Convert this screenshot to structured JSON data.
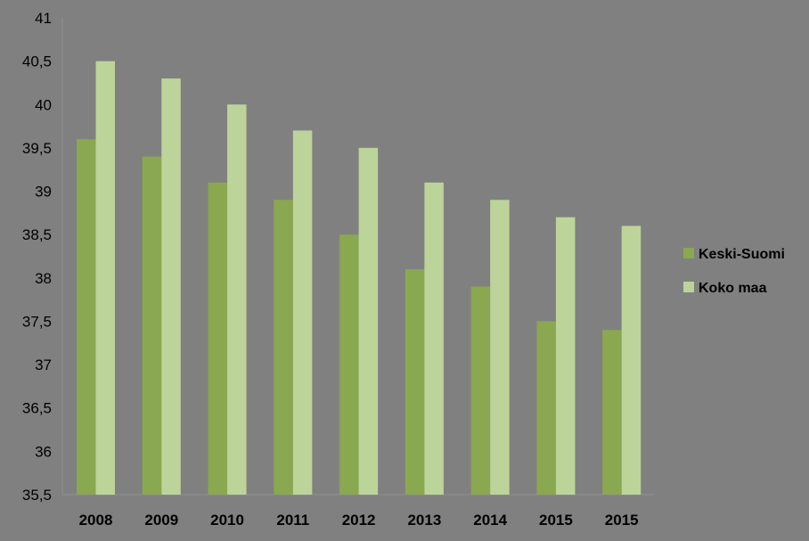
{
  "chart_data": {
    "type": "bar",
    "title": "",
    "xlabel": "",
    "ylabel": "",
    "categories": [
      "2008",
      "2009",
      "2010",
      "2011",
      "2012",
      "2013",
      "2014",
      "2015",
      "2015"
    ],
    "series": [
      {
        "name": "Keski-Suomi",
        "color": "#8aa84f",
        "values": [
          39.6,
          39.4,
          39.1,
          38.9,
          38.5,
          38.1,
          37.9,
          37.5,
          37.4
        ]
      },
      {
        "name": "Koko maa",
        "color": "#bcd49a",
        "values": [
          40.5,
          40.3,
          40.0,
          39.7,
          39.5,
          39.1,
          38.9,
          38.7,
          38.6
        ]
      }
    ],
    "ylim": [
      35.5,
      41
    ],
    "yticks": [
      "35,5",
      "36",
      "36,5",
      "37",
      "37,5",
      "38",
      "38,5",
      "39",
      "39,5",
      "40",
      "40,5",
      "41"
    ],
    "ytick_values": [
      35.5,
      36,
      36.5,
      37,
      37.5,
      38,
      38.5,
      39,
      39.5,
      40,
      40.5,
      41
    ],
    "grid": false,
    "legend_position": "right",
    "background_color": "#808080",
    "axis_color": "#8f8f8f"
  }
}
